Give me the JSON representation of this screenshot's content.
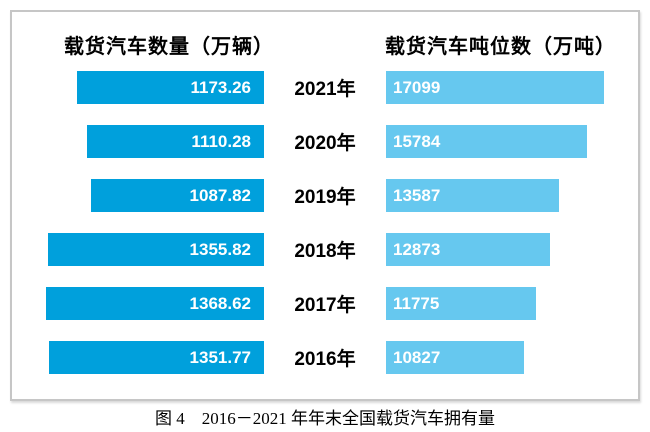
{
  "headers": {
    "left": "载货汽车数量（万辆）",
    "right": "载货汽车吨位数（万吨）"
  },
  "caption": "图 4　2016－2021 年年末全国载货汽车拥有量",
  "colors": {
    "left_bar": "#00a0dc",
    "right_bar": "#66c8ef",
    "value_text": "#ffffff",
    "frame_border": "#c6c6c6",
    "text": "#000000",
    "background": "#ffffff"
  },
  "chart_data": {
    "type": "bar",
    "orientation": "horizontal-tornado",
    "title": "图 4　2016－2021 年年末全国载货汽车拥有量",
    "categories": [
      "2021年",
      "2020年",
      "2019年",
      "2018年",
      "2017年",
      "2016年"
    ],
    "series": [
      {
        "name": "载货汽车数量（万辆）",
        "values": [
          1173.26,
          1110.28,
          1087.82,
          1355.82,
          1368.62,
          1351.77
        ],
        "labels": [
          "1173.26",
          "1110.28",
          "1087.82",
          "1355.82",
          "1368.62",
          "1351.77"
        ],
        "color": "#00a0dc",
        "bar_alignment": "right",
        "axis_range": [
          0,
          1368.62
        ]
      },
      {
        "name": "载货汽车吨位数（万吨）",
        "values": [
          17099,
          15784,
          13587,
          12873,
          11775,
          10827
        ],
        "labels": [
          "17099",
          "15784",
          "13587",
          "12873",
          "11775",
          "10827"
        ],
        "color": "#66c8ef",
        "bar_alignment": "left",
        "axis_range": [
          0,
          17099
        ]
      }
    ],
    "value_labels": "inside-bar",
    "grid": false,
    "legend_position": "top-headers"
  }
}
